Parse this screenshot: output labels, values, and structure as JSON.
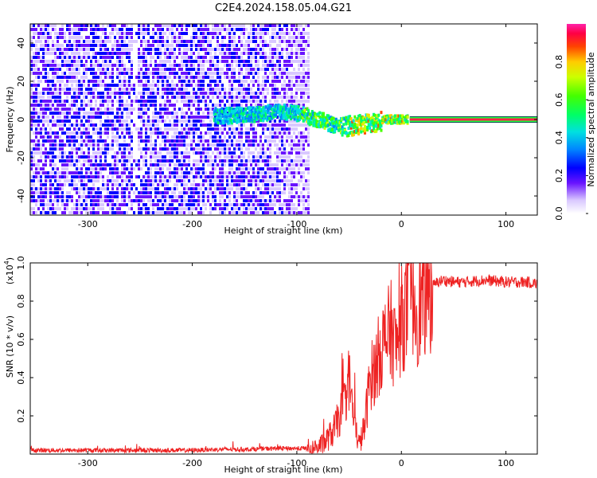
{
  "title": "C2E4.2024.158.05.04.G21",
  "colors": {
    "snr_line": "#ee2222",
    "spectrum_low": "#e8dcff",
    "spectrum_mid": "#7a1fff",
    "frame": "#000000"
  },
  "chart_data": [
    {
      "type": "heatmap",
      "xlabel": "Height of straight line (km)",
      "ylabel": "Frequency (Hz)",
      "xlim": [
        -355,
        130
      ],
      "ylim": [
        -50,
        50
      ],
      "x_ticks": [
        -300,
        -200,
        -100,
        0,
        100
      ],
      "x_tick_labels": [
        "-300",
        "-200",
        "-100",
        "0",
        "100"
      ],
      "y_ticks": [
        -40,
        -20,
        0,
        20,
        40
      ],
      "y_tick_labels": [
        "-40",
        "-20",
        "0",
        "20",
        "40"
      ],
      "colorbar": {
        "label": "Normalized spectral amplitude",
        "range": [
          0,
          1
        ],
        "ticks": [
          0.0,
          0.2,
          0.4,
          0.6,
          0.8
        ],
        "tick_labels": [
          "0.0",
          "0.2",
          "0.4",
          "0.6",
          "0.8"
        ]
      },
      "features": {
        "noise_region_x": [
          -355,
          -88
        ],
        "signal_track_x": [
          -180,
          5
        ],
        "signal_center_freq_hz": [
          [
            -180,
            2
          ],
          [
            -160,
            2
          ],
          [
            -140,
            3
          ],
          [
            -120,
            4
          ],
          [
            -100,
            3
          ],
          [
            -80,
            0
          ],
          [
            -60,
            -4
          ],
          [
            -45,
            -3
          ],
          [
            -30,
            -2
          ],
          [
            -15,
            0
          ],
          [
            0,
            0
          ],
          [
            5,
            0
          ]
        ],
        "tone_line_x": [
          8,
          130
        ],
        "tone_line_freq_hz": 0
      }
    },
    {
      "type": "line",
      "xlabel": "Height of straight line (km)",
      "ylabel": "SNR (10 * v/v)",
      "y_scale_label": "(x10",
      "y_scale_exp": "4",
      "y_scale_close": ")",
      "xlim": [
        -355,
        130
      ],
      "ylim": [
        0,
        1.0
      ],
      "x_ticks": [
        -300,
        -200,
        -100,
        0,
        100
      ],
      "x_tick_labels": [
        "-300",
        "-200",
        "-100",
        "0",
        "100"
      ],
      "y_ticks": [
        0.2,
        0.4,
        0.6,
        0.8,
        1.0
      ],
      "y_tick_labels": [
        "0.2",
        "0.4",
        "0.6",
        "0.8",
        "1.0"
      ],
      "series": [
        {
          "x": [
            -355,
            -300,
            -250,
            -200,
            -170,
            -150,
            -120,
            -100,
            -85,
            -75,
            -65,
            -55,
            -50,
            -45,
            -40,
            -35,
            -30,
            -25,
            -20,
            -15,
            -10,
            -5,
            0,
            5,
            10,
            15,
            20,
            25,
            30,
            35,
            40,
            50,
            60,
            80,
            100,
            120,
            130
          ],
          "y": [
            0.02,
            0.02,
            0.02,
            0.02,
            0.025,
            0.025,
            0.03,
            0.03,
            0.03,
            0.05,
            0.12,
            0.25,
            0.4,
            0.15,
            0.05,
            0.15,
            0.4,
            0.45,
            0.55,
            0.6,
            0.65,
            0.55,
            0.7,
            0.75,
            0.85,
            0.75,
            0.8,
            0.85,
            0.88,
            0.9,
            0.91,
            0.9,
            0.9,
            0.91,
            0.9,
            0.9,
            0.89
          ]
        }
      ]
    }
  ]
}
